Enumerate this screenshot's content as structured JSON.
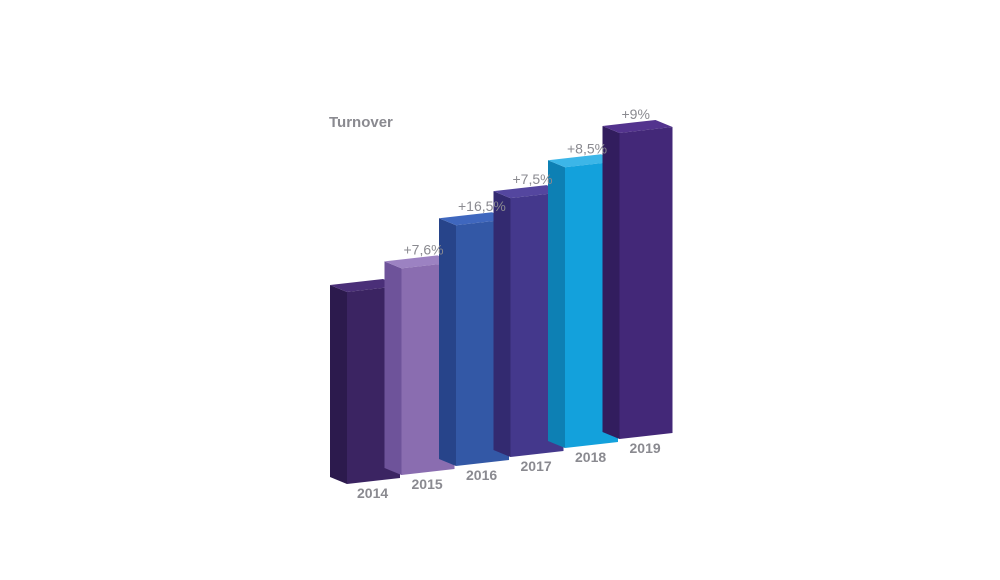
{
  "chart_data": {
    "type": "bar",
    "title": "Turnover",
    "categories": [
      "2014",
      "2015",
      "2016",
      "2017",
      "2018",
      "2019"
    ],
    "growth_labels": [
      "",
      "+7,6%",
      "+16,5%",
      "+7,5%",
      "+8,5%",
      "+9%"
    ],
    "values": [
      100,
      107.6,
      125.4,
      134.8,
      146.2,
      159.4
    ],
    "colors": {
      "2014": {
        "front": "#3b2462",
        "side": "#2c1a4d",
        "top": "#4a2f78"
      },
      "2015": {
        "front": "#8a6db0",
        "side": "#6e539a",
        "top": "#9c82c2"
      },
      "2016": {
        "front": "#3358a6",
        "side": "#27448a",
        "top": "#3f67be"
      },
      "2017": {
        "front": "#44388c",
        "side": "#332a70",
        "top": "#54469f"
      },
      "2018": {
        "front": "#13a1dc",
        "side": "#0d80b4",
        "top": "#3cb6e8"
      },
      "2019": {
        "front": "#432878",
        "side": "#321d5e",
        "top": "#53338e"
      }
    },
    "xlabel": "",
    "ylabel": "",
    "grid": false,
    "legend": "none"
  }
}
